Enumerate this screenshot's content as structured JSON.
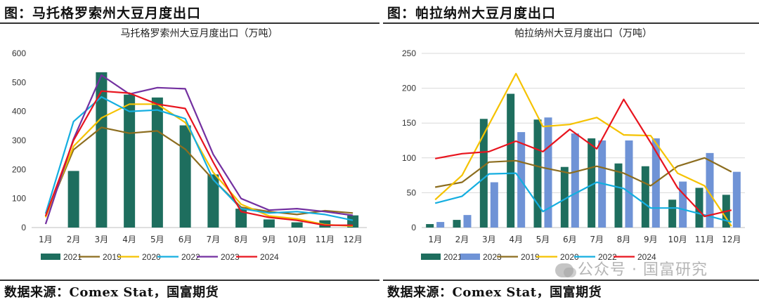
{
  "panels": [
    {
      "fig_title": "图：马托格罗索州大豆月度出口",
      "source": "数据来源：Comex Stat，国富期货"
    },
    {
      "fig_title": "图：帕拉纳州大豆月度出口",
      "source": "数据来源：Comex Stat，国富期货"
    }
  ],
  "watermark": "公众号 · 国富研究",
  "colors": {
    "2021": "#1e6e5e",
    "2023_bar": "#6f93d6",
    "2019": "#8c6d1f",
    "2020": "#f5c200",
    "2022": "#14aee0",
    "2023": "#7330a0",
    "2024": "#e8141e"
  },
  "chart_data": [
    {
      "type": "bar+line",
      "title": "马托格罗索州大豆月度出口（万吨）",
      "categories": [
        "1月",
        "2月",
        "3月",
        "4月",
        "5月",
        "6月",
        "7月",
        "8月",
        "9月",
        "10月",
        "11月",
        "12月"
      ],
      "ylim": [
        0,
        600
      ],
      "yticks": [
        0,
        100,
        200,
        300,
        400,
        500,
        600
      ],
      "grid": false,
      "legend_position": "bottom",
      "bars": [
        {
          "name": "2021",
          "color_key": "2021",
          "values": [
            0,
            195,
            535,
            458,
            448,
            352,
            183,
            65,
            28,
            18,
            25,
            42
          ]
        }
      ],
      "lines": [
        {
          "name": "2019",
          "color_key": "2019",
          "values": [
            38,
            268,
            345,
            325,
            333,
            270,
            165,
            70,
            55,
            45,
            58,
            50
          ]
        },
        {
          "name": "2020",
          "color_key": "2020",
          "values": [
            35,
            280,
            378,
            425,
            425,
            362,
            190,
            80,
            40,
            30,
            10,
            5
          ]
        },
        {
          "name": "2022",
          "color_key": "2022",
          "values": [
            48,
            365,
            450,
            400,
            405,
            375,
            165,
            65,
            50,
            55,
            45,
            25
          ]
        },
        {
          "name": "2023",
          "color_key": "2023",
          "values": [
            12,
            305,
            525,
            460,
            482,
            478,
            252,
            100,
            60,
            65,
            55,
            42
          ]
        },
        {
          "name": "2024",
          "color_key": "2024",
          "values": [
            40,
            300,
            470,
            463,
            425,
            410,
            225,
            55,
            35,
            25,
            8,
            8
          ]
        }
      ],
      "legend": [
        "2021",
        "2019",
        "2020",
        "2022",
        "2023",
        "2024"
      ]
    },
    {
      "type": "bar+line",
      "title": "帕拉纳州大豆月度出口（万吨）",
      "categories": [
        "1月",
        "2月",
        "3月",
        "4月",
        "5月",
        "6月",
        "7月",
        "8月",
        "9月",
        "10月",
        "11月",
        "12月"
      ],
      "ylim": [
        0,
        250
      ],
      "yticks": [
        0,
        50,
        100,
        150,
        200,
        250
      ],
      "grid": true,
      "legend_position": "bottom",
      "bars": [
        {
          "name": "2021",
          "color_key": "2021",
          "values": [
            5,
            11,
            156,
            192,
            155,
            87,
            128,
            92,
            88,
            40,
            57,
            47
          ]
        },
        {
          "name": "2023",
          "color_key": "2023_bar",
          "values": [
            8,
            18,
            65,
            137,
            158,
            135,
            125,
            125,
            128,
            66,
            107,
            80
          ]
        }
      ],
      "lines": [
        {
          "name": "2019",
          "color_key": "2019",
          "values": [
            58,
            65,
            94,
            96,
            86,
            78,
            88,
            78,
            60,
            88,
            100,
            80
          ]
        },
        {
          "name": "2020",
          "color_key": "2020",
          "values": [
            40,
            75,
            148,
            221,
            145,
            148,
            158,
            133,
            132,
            78,
            60,
            2
          ]
        },
        {
          "name": "2022",
          "color_key": "2022",
          "values": [
            35,
            45,
            77,
            78,
            23,
            45,
            65,
            56,
            28,
            28,
            18,
            8
          ]
        },
        {
          "name": "2024",
          "color_key": "2024",
          "values": [
            99,
            106,
            109,
            124,
            109,
            141,
            113,
            184,
            122,
            57,
            16,
            25
          ]
        }
      ],
      "legend": [
        "2021",
        "2023",
        "2019",
        "2020",
        "2022",
        "2024"
      ]
    }
  ]
}
